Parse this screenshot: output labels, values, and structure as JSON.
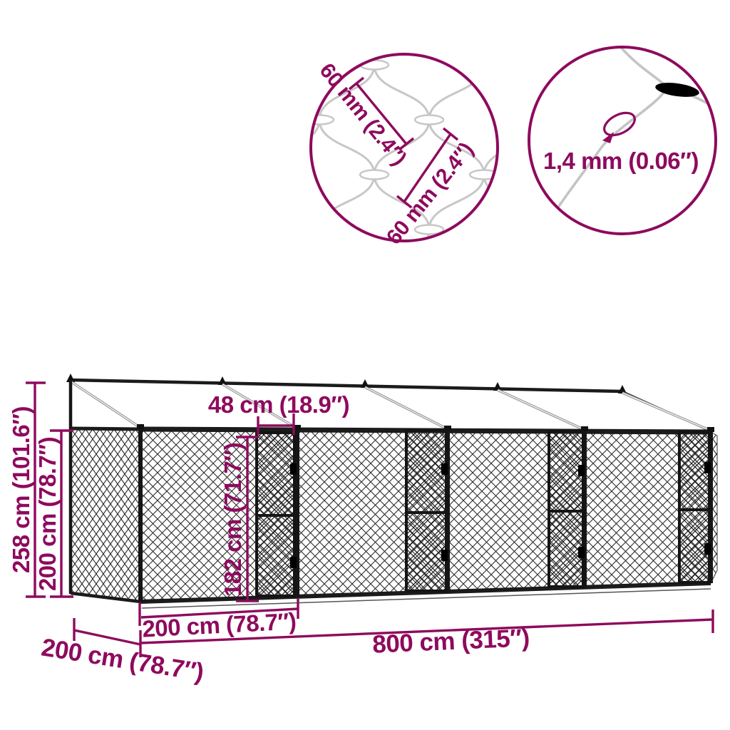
{
  "colors": {
    "accent": "#8E0A5E",
    "wire": "#C7C7C7",
    "structure": "#222222"
  },
  "callouts": {
    "mesh": {
      "dim_a": "60 mm (2.4″)",
      "dim_b": "60 mm (2.4″)"
    },
    "wire": {
      "thickness": "1,4 mm (0.06″)"
    }
  },
  "dims": {
    "total_height": "258 cm (101.6″)",
    "wall_height": "200 cm (78.7″)",
    "door_width": "48 cm (18.9″)",
    "door_height": "182 cm (71.7″)",
    "bay_width": "200 cm (78.7″)",
    "depth": "200 cm (78.7″)",
    "total_length": "800 cm (315″)"
  }
}
